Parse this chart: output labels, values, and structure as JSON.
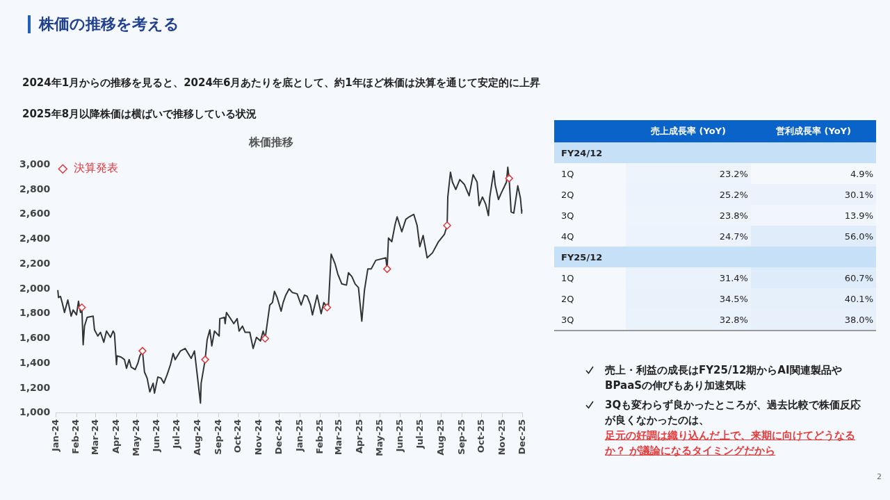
{
  "chart_data": [
    {
      "type": "line",
      "title": "株価推移",
      "annotations": [
        "株価の推移を考える",
        "2024年1月からの推移を見ると、2024年6月あたりを底として、約1年ほど株価は決算を通じて安定的に上昇",
        "2025年8月以降株価は横ばいで推移している状況",
        "2"
      ],
      "series": [
        {
          "color": "#333333",
          "marker": "none",
          "line_style": "solid",
          "x": [
            "2024-01-04",
            "2024-01-05",
            "2024-01-08",
            "2024-01-11",
            "2024-01-14",
            "2024-01-19",
            "2024-01-24",
            "2024-01-27",
            "2024-02-01",
            "2024-02-04",
            "2024-02-07",
            "2024-02-09",
            "2024-02-11",
            "2024-02-13",
            "2024-02-17",
            "2024-02-26",
            "2024-02-28",
            "2024-03-04",
            "2024-03-08",
            "2024-03-13",
            "2024-03-17",
            "2024-03-23",
            "2024-03-27",
            "2024-03-29",
            "2024-04-01",
            "2024-04-02",
            "2024-04-08",
            "2024-04-13",
            "2024-04-16",
            "2024-04-20",
            "2024-04-23",
            "2024-04-29",
            "2024-05-03",
            "2024-05-06",
            "2024-05-10",
            "2024-05-13",
            "2024-05-17",
            "2024-05-21",
            "2024-05-26",
            "2024-05-28",
            "2024-06-02",
            "2024-06-07",
            "2024-06-11",
            "2024-06-16",
            "2024-06-21",
            "2024-06-25",
            "2024-06-28",
            "2024-07-06",
            "2024-07-13",
            "2024-07-22",
            "2024-07-27",
            "2024-08-05",
            "2024-08-06",
            "2024-08-12",
            "2024-08-15",
            "2024-08-19",
            "2024-08-22",
            "2024-08-26",
            "2024-09-02",
            "2024-09-03",
            "2024-09-10",
            "2024-09-11",
            "2024-09-13",
            "2024-09-24",
            "2024-09-29",
            "2024-10-02",
            "2024-10-07",
            "2024-10-11",
            "2024-10-18",
            "2024-10-23",
            "2024-10-28",
            "2024-11-03",
            "2024-11-07",
            "2024-11-10",
            "2024-11-17",
            "2024-11-21",
            "2024-11-24",
            "2024-11-28",
            "2024-12-04",
            "2024-12-07",
            "2024-12-11",
            "2024-12-16",
            "2024-12-21",
            "2024-12-28",
            "2025-01-03",
            "2025-01-08",
            "2025-01-12",
            "2025-01-17",
            "2025-01-20",
            "2025-01-27",
            "2025-02-02",
            "2025-02-06",
            "2025-02-11",
            "2025-02-13",
            "2025-02-17",
            "2025-02-23",
            "2025-02-27",
            "2025-03-05",
            "2025-03-12",
            "2025-03-15",
            "2025-03-20",
            "2025-03-25",
            "2025-03-30",
            "2025-04-04",
            "2025-04-08",
            "2025-04-13",
            "2025-04-18",
            "2025-04-25",
            "2025-05-10",
            "2025-05-12",
            "2025-05-14",
            "2025-05-19",
            "2025-05-24",
            "2025-05-27",
            "2025-06-03",
            "2025-06-09",
            "2025-06-14",
            "2025-06-21",
            "2025-06-26",
            "2025-06-30",
            "2025-07-05",
            "2025-07-11",
            "2025-07-19",
            "2025-07-28",
            "2025-08-06",
            "2025-08-10",
            "2025-08-11",
            "2025-08-15",
            "2025-08-18",
            "2025-08-23",
            "2025-08-29",
            "2025-09-05",
            "2025-09-12",
            "2025-09-18",
            "2025-09-24",
            "2025-09-27",
            "2025-10-02",
            "2025-10-07",
            "2025-10-11",
            "2025-10-13",
            "2025-10-19",
            "2025-10-21",
            "2025-10-26",
            "2025-10-30",
            "2025-11-07",
            "2025-11-09",
            "2025-11-11",
            "2025-11-14",
            "2025-11-18",
            "2025-11-24",
            "2025-11-28",
            "2025-11-30",
            "2025-12-01"
          ],
          "values": [
            1990,
            1930,
            1940,
            1880,
            1810,
            1910,
            1780,
            1830,
            1790,
            1900,
            1810,
            1850,
            1550,
            1700,
            1770,
            1780,
            1670,
            1620,
            1650,
            1570,
            1660,
            1610,
            1660,
            1640,
            1390,
            1460,
            1450,
            1430,
            1360,
            1430,
            1370,
            1350,
            1400,
            1460,
            1500,
            1330,
            1280,
            1170,
            1240,
            1160,
            1290,
            1280,
            1240,
            1310,
            1390,
            1480,
            1430,
            1500,
            1520,
            1440,
            1500,
            1080,
            1240,
            1430,
            1590,
            1670,
            1540,
            1660,
            1620,
            1760,
            1770,
            1720,
            1810,
            1720,
            1760,
            1660,
            1700,
            1650,
            1650,
            1520,
            1610,
            1580,
            1660,
            1600,
            1870,
            1890,
            1980,
            1930,
            1820,
            1890,
            1950,
            2000,
            1970,
            1960,
            1870,
            1950,
            1940,
            1870,
            1790,
            1950,
            1800,
            1890,
            1850,
            1870,
            2280,
            2200,
            2120,
            2040,
            2030,
            2130,
            2100,
            2040,
            2010,
            1740,
            1990,
            2160,
            2160,
            2230,
            2250,
            2160,
            2410,
            2380,
            2520,
            2580,
            2460,
            2560,
            2580,
            2600,
            2510,
            2340,
            2430,
            2250,
            2290,
            2380,
            2440,
            2510,
            2740,
            2940,
            2860,
            2800,
            2880,
            2840,
            2750,
            2920,
            2860,
            2670,
            2740,
            2680,
            2590,
            2740,
            2950,
            2840,
            2720,
            2770,
            2860,
            2980,
            2890,
            2620,
            2610,
            2830,
            2730,
            2610,
            2640
          ]
        },
        {
          "type": "scatter",
          "name": "決算発表",
          "color": "#e0383b",
          "marker": "diamond",
          "x": [
            "2024-02-09",
            "2024-05-10",
            "2024-08-12",
            "2024-11-10",
            "2025-02-11",
            "2025-05-12",
            "2025-08-10",
            "2025-11-11"
          ],
          "values": [
            1850,
            1500,
            1430,
            1600,
            1850,
            2160,
            2510,
            2890
          ]
        }
      ],
      "xlim": [
        "2024-01-01",
        "2025-12-01"
      ],
      "xticks": [
        {
          "value": "2024-01-01",
          "label": "Jan-24"
        },
        {
          "value": "2024-02-01",
          "label": "Feb-24"
        },
        {
          "value": "2024-03-01",
          "label": "Mar-24"
        },
        {
          "value": "2024-04-01",
          "label": "Apr-24"
        },
        {
          "value": "2024-05-01",
          "label": "May-24"
        },
        {
          "value": "2024-06-01",
          "label": "Jun-24"
        },
        {
          "value": "2024-07-01",
          "label": "Jul-24"
        },
        {
          "value": "2024-08-01",
          "label": "Aug-24"
        },
        {
          "value": "2024-09-01",
          "label": "Sep-24"
        },
        {
          "value": "2024-10-01",
          "label": "Oct-24"
        },
        {
          "value": "2024-11-01",
          "label": "Nov-24"
        },
        {
          "value": "2024-12-01",
          "label": "Dec-24"
        },
        {
          "value": "2025-01-01",
          "label": "Jan-25"
        },
        {
          "value": "2025-02-01",
          "label": "Feb-25"
        },
        {
          "value": "2025-03-01",
          "label": "Mar-25"
        },
        {
          "value": "2025-04-01",
          "label": "Apr-25"
        },
        {
          "value": "2025-05-01",
          "label": "May-25"
        },
        {
          "value": "2025-06-01",
          "label": "Jun-25"
        },
        {
          "value": "2025-07-01",
          "label": "Jul-25"
        },
        {
          "value": "2025-08-01",
          "label": "Aug-25"
        },
        {
          "value": "2025-09-01",
          "label": "Sep-25"
        },
        {
          "value": "2025-10-01",
          "label": "Oct-25"
        },
        {
          "value": "2025-11-01",
          "label": "Nov-25"
        },
        {
          "value": "2025-12-01",
          "label": "Dec-25"
        }
      ],
      "ylim": [
        1000,
        3000
      ],
      "yticks": [
        {
          "value": 1000,
          "label": "1,000"
        },
        {
          "value": 1200,
          "label": "1,200"
        },
        {
          "value": 1400,
          "label": "1,400"
        },
        {
          "value": 1600,
          "label": "1,600"
        },
        {
          "value": 1800,
          "label": "1,800"
        },
        {
          "value": 2000,
          "label": "2,000"
        },
        {
          "value": 2200,
          "label": "2,200"
        },
        {
          "value": 2400,
          "label": "2,400"
        },
        {
          "value": 2600,
          "label": "2,600"
        },
        {
          "value": 2800,
          "label": "2,800"
        },
        {
          "value": 3000,
          "label": "3,000"
        }
      ],
      "grid": false,
      "legend": "top left"
    },
    {
      "type": "heatmap",
      "cells": [
        [
          null,
          null
        ],
        [
          23.2,
          4.9
        ],
        [
          25.2,
          30.1
        ],
        [
          23.8,
          13.9
        ],
        [
          24.7,
          56.0
        ],
        [
          null,
          null
        ],
        [
          31.4,
          60.7
        ],
        [
          34.5,
          40.1
        ],
        [
          32.8,
          38.0
        ]
      ],
      "categories": [
        "売上成長率 (YoY)",
        "営利成長率 (YoY)"
      ],
      "y_categories": [
        "FY24/12",
        "1Q",
        "2Q",
        "3Q",
        "4Q",
        "FY25/12",
        "1Q",
        "2Q",
        "3Q"
      ],
      "cell_labels": [
        [
          null,
          null
        ],
        [
          "23.2%",
          "4.9%"
        ],
        [
          "25.2%",
          "30.1%"
        ],
        [
          "23.8%",
          "13.9%"
        ],
        [
          "24.7%",
          "56.0%"
        ],
        [
          null,
          null
        ],
        [
          "31.4%",
          "60.7%"
        ],
        [
          "34.5%",
          "40.1%"
        ],
        [
          "32.8%",
          "38.0%"
        ]
      ],
      "annotations": [
        "売上・利益の成長はFY25/12期からAI関連製品やBPaaSの伸びもあり加速気味",
        "3Qも変わらず良かったところが、過去比較で株価反応が良くなかったのは、",
        "足元の好調は織り込んだ上で、来期に向けてどうなるか？ が議論になるタイミングだから"
      ]
    }
  ]
}
